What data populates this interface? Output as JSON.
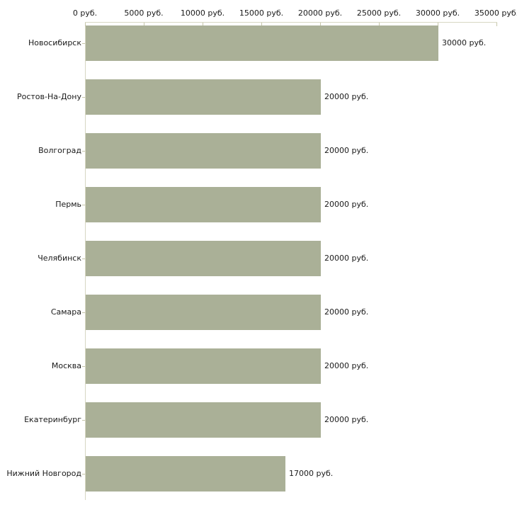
{
  "chart_data": {
    "type": "bar",
    "orientation": "horizontal",
    "title": "",
    "xlabel": "",
    "ylabel": "",
    "grid": false,
    "legend": false,
    "categories": [
      "Новосибирск",
      "Ростов-На-Дону",
      "Волгоград",
      "Пермь",
      "Челябинск",
      "Самара",
      "Москва",
      "Екатеринбург",
      "Нижний Новгород"
    ],
    "values": [
      30000,
      20000,
      20000,
      20000,
      20000,
      20000,
      20000,
      20000,
      17000
    ],
    "value_labels": [
      "30000 руб.",
      "20000 руб.",
      "20000 руб.",
      "20000 руб.",
      "20000 руб.",
      "20000 руб.",
      "20000 руб.",
      "20000 руб.",
      "17000 руб."
    ],
    "xlim": [
      0,
      35000
    ],
    "x_ticks": [
      0,
      5000,
      10000,
      15000,
      20000,
      25000,
      30000,
      35000
    ],
    "x_tick_labels": [
      "0 руб.",
      "5000 руб.",
      "10000 руб.",
      "15000 руб.",
      "20000 руб.",
      "25000 руб.",
      "30000 руб.",
      "35000 руб."
    ],
    "colors": {
      "bar": "#aab097",
      "axis_line": "#d7d7c3",
      "tick": "#c6c6aa",
      "text": "#1a1a1a",
      "background": "#ffffff"
    }
  }
}
